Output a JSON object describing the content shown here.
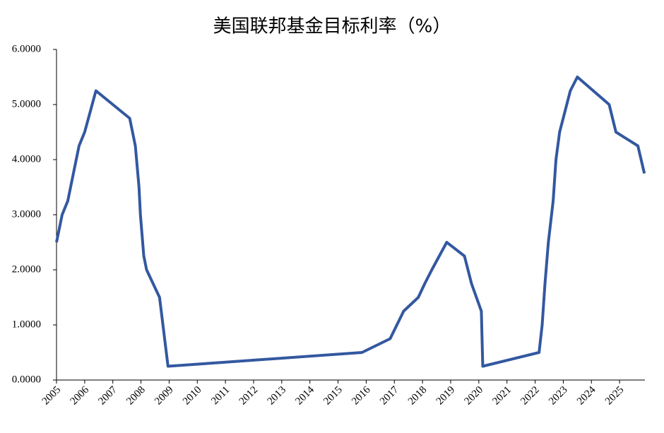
{
  "chart_data": {
    "type": "line",
    "title": "美国联邦基金目标利率（%）",
    "x": [
      2005.0,
      2005.2,
      2005.4,
      2005.6,
      2005.8,
      2006.0,
      2006.4,
      2007.6,
      2007.8,
      2007.93,
      2007.98,
      2008.1,
      2008.2,
      2008.66,
      2008.96,
      2015.85,
      2016.85,
      2017.33,
      2017.85,
      2018.08,
      2018.33,
      2018.86,
      2019.49,
      2019.74,
      2020.09,
      2020.14,
      2022.14,
      2022.25,
      2022.35,
      2022.47,
      2022.64,
      2022.74,
      2022.87,
      2023.25,
      2023.5,
      2024.63,
      2024.75,
      2024.87,
      2025.65,
      2025.88
    ],
    "series": [
      {
        "name": "美国联邦基金目标利率",
        "color": "#3358a0",
        "values": [
          2.5,
          3.0,
          3.25,
          3.75,
          4.25,
          4.5,
          5.25,
          4.75,
          4.25,
          3.5,
          3.0,
          2.25,
          2.0,
          1.5,
          0.25,
          0.5,
          0.75,
          1.25,
          1.5,
          1.75,
          2.0,
          2.5,
          2.25,
          1.75,
          1.25,
          0.25,
          0.5,
          1.0,
          1.75,
          2.5,
          3.25,
          4.0,
          4.5,
          5.25,
          5.5,
          5.0,
          4.75,
          4.5,
          4.25,
          3.75
        ]
      }
    ],
    "xlim": [
      2005,
      2025.9
    ],
    "xticks": [
      2005,
      2006,
      2007,
      2008,
      2009,
      2010,
      2011,
      2012,
      2013,
      2014,
      2015,
      2016,
      2017,
      2018,
      2019,
      2020,
      2021,
      2022,
      2023,
      2024,
      2025
    ],
    "ylim": [
      0,
      6
    ],
    "yticks": [
      {
        "value": 0,
        "label": "0.0000"
      },
      {
        "value": 1,
        "label": "1.0000"
      },
      {
        "value": 2,
        "label": "2.0000"
      },
      {
        "value": 3,
        "label": "3.0000"
      },
      {
        "value": 4,
        "label": "4.0000"
      },
      {
        "value": 5,
        "label": "5.0000"
      },
      {
        "value": 6,
        "label": "6.0000"
      }
    ]
  }
}
